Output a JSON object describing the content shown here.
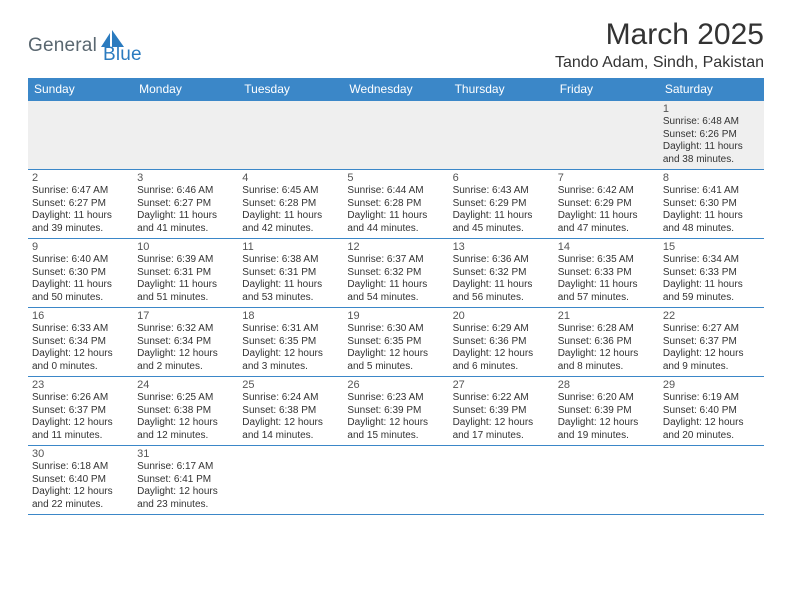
{
  "logo": {
    "general": "General",
    "blue": "Blue"
  },
  "title": "March 2025",
  "location": "Tando Adam, Sindh, Pakistan",
  "day_headers": [
    "Sunday",
    "Monday",
    "Tuesday",
    "Wednesday",
    "Thursday",
    "Friday",
    "Saturday"
  ],
  "colors": {
    "header_bg": "#3b87c8",
    "header_text": "#ffffff",
    "row_border": "#3b87c8",
    "first_row_bg": "#efefef",
    "logo_general": "#5a6770",
    "logo_blue": "#2b7bbf",
    "title_color": "#333333",
    "day_num_color": "#555555",
    "day_text_color": "#333333"
  },
  "fonts": {
    "title_size": 30,
    "location_size": 16,
    "header_size": 12,
    "daynum_size": 11,
    "daytext_size": 10
  },
  "weeks": [
    [
      {},
      {},
      {},
      {},
      {},
      {},
      {
        "n": "1",
        "sr": "Sunrise: 6:48 AM",
        "ss": "Sunset: 6:26 PM",
        "d1": "Daylight: 11 hours",
        "d2": "and 38 minutes."
      }
    ],
    [
      {
        "n": "2",
        "sr": "Sunrise: 6:47 AM",
        "ss": "Sunset: 6:27 PM",
        "d1": "Daylight: 11 hours",
        "d2": "and 39 minutes."
      },
      {
        "n": "3",
        "sr": "Sunrise: 6:46 AM",
        "ss": "Sunset: 6:27 PM",
        "d1": "Daylight: 11 hours",
        "d2": "and 41 minutes."
      },
      {
        "n": "4",
        "sr": "Sunrise: 6:45 AM",
        "ss": "Sunset: 6:28 PM",
        "d1": "Daylight: 11 hours",
        "d2": "and 42 minutes."
      },
      {
        "n": "5",
        "sr": "Sunrise: 6:44 AM",
        "ss": "Sunset: 6:28 PM",
        "d1": "Daylight: 11 hours",
        "d2": "and 44 minutes."
      },
      {
        "n": "6",
        "sr": "Sunrise: 6:43 AM",
        "ss": "Sunset: 6:29 PM",
        "d1": "Daylight: 11 hours",
        "d2": "and 45 minutes."
      },
      {
        "n": "7",
        "sr": "Sunrise: 6:42 AM",
        "ss": "Sunset: 6:29 PM",
        "d1": "Daylight: 11 hours",
        "d2": "and 47 minutes."
      },
      {
        "n": "8",
        "sr": "Sunrise: 6:41 AM",
        "ss": "Sunset: 6:30 PM",
        "d1": "Daylight: 11 hours",
        "d2": "and 48 minutes."
      }
    ],
    [
      {
        "n": "9",
        "sr": "Sunrise: 6:40 AM",
        "ss": "Sunset: 6:30 PM",
        "d1": "Daylight: 11 hours",
        "d2": "and 50 minutes."
      },
      {
        "n": "10",
        "sr": "Sunrise: 6:39 AM",
        "ss": "Sunset: 6:31 PM",
        "d1": "Daylight: 11 hours",
        "d2": "and 51 minutes."
      },
      {
        "n": "11",
        "sr": "Sunrise: 6:38 AM",
        "ss": "Sunset: 6:31 PM",
        "d1": "Daylight: 11 hours",
        "d2": "and 53 minutes."
      },
      {
        "n": "12",
        "sr": "Sunrise: 6:37 AM",
        "ss": "Sunset: 6:32 PM",
        "d1": "Daylight: 11 hours",
        "d2": "and 54 minutes."
      },
      {
        "n": "13",
        "sr": "Sunrise: 6:36 AM",
        "ss": "Sunset: 6:32 PM",
        "d1": "Daylight: 11 hours",
        "d2": "and 56 minutes."
      },
      {
        "n": "14",
        "sr": "Sunrise: 6:35 AM",
        "ss": "Sunset: 6:33 PM",
        "d1": "Daylight: 11 hours",
        "d2": "and 57 minutes."
      },
      {
        "n": "15",
        "sr": "Sunrise: 6:34 AM",
        "ss": "Sunset: 6:33 PM",
        "d1": "Daylight: 11 hours",
        "d2": "and 59 minutes."
      }
    ],
    [
      {
        "n": "16",
        "sr": "Sunrise: 6:33 AM",
        "ss": "Sunset: 6:34 PM",
        "d1": "Daylight: 12 hours",
        "d2": "and 0 minutes."
      },
      {
        "n": "17",
        "sr": "Sunrise: 6:32 AM",
        "ss": "Sunset: 6:34 PM",
        "d1": "Daylight: 12 hours",
        "d2": "and 2 minutes."
      },
      {
        "n": "18",
        "sr": "Sunrise: 6:31 AM",
        "ss": "Sunset: 6:35 PM",
        "d1": "Daylight: 12 hours",
        "d2": "and 3 minutes."
      },
      {
        "n": "19",
        "sr": "Sunrise: 6:30 AM",
        "ss": "Sunset: 6:35 PM",
        "d1": "Daylight: 12 hours",
        "d2": "and 5 minutes."
      },
      {
        "n": "20",
        "sr": "Sunrise: 6:29 AM",
        "ss": "Sunset: 6:36 PM",
        "d1": "Daylight: 12 hours",
        "d2": "and 6 minutes."
      },
      {
        "n": "21",
        "sr": "Sunrise: 6:28 AM",
        "ss": "Sunset: 6:36 PM",
        "d1": "Daylight: 12 hours",
        "d2": "and 8 minutes."
      },
      {
        "n": "22",
        "sr": "Sunrise: 6:27 AM",
        "ss": "Sunset: 6:37 PM",
        "d1": "Daylight: 12 hours",
        "d2": "and 9 minutes."
      }
    ],
    [
      {
        "n": "23",
        "sr": "Sunrise: 6:26 AM",
        "ss": "Sunset: 6:37 PM",
        "d1": "Daylight: 12 hours",
        "d2": "and 11 minutes."
      },
      {
        "n": "24",
        "sr": "Sunrise: 6:25 AM",
        "ss": "Sunset: 6:38 PM",
        "d1": "Daylight: 12 hours",
        "d2": "and 12 minutes."
      },
      {
        "n": "25",
        "sr": "Sunrise: 6:24 AM",
        "ss": "Sunset: 6:38 PM",
        "d1": "Daylight: 12 hours",
        "d2": "and 14 minutes."
      },
      {
        "n": "26",
        "sr": "Sunrise: 6:23 AM",
        "ss": "Sunset: 6:39 PM",
        "d1": "Daylight: 12 hours",
        "d2": "and 15 minutes."
      },
      {
        "n": "27",
        "sr": "Sunrise: 6:22 AM",
        "ss": "Sunset: 6:39 PM",
        "d1": "Daylight: 12 hours",
        "d2": "and 17 minutes."
      },
      {
        "n": "28",
        "sr": "Sunrise: 6:20 AM",
        "ss": "Sunset: 6:39 PM",
        "d1": "Daylight: 12 hours",
        "d2": "and 19 minutes."
      },
      {
        "n": "29",
        "sr": "Sunrise: 6:19 AM",
        "ss": "Sunset: 6:40 PM",
        "d1": "Daylight: 12 hours",
        "d2": "and 20 minutes."
      }
    ],
    [
      {
        "n": "30",
        "sr": "Sunrise: 6:18 AM",
        "ss": "Sunset: 6:40 PM",
        "d1": "Daylight: 12 hours",
        "d2": "and 22 minutes."
      },
      {
        "n": "31",
        "sr": "Sunrise: 6:17 AM",
        "ss": "Sunset: 6:41 PM",
        "d1": "Daylight: 12 hours",
        "d2": "and 23 minutes."
      },
      {},
      {},
      {},
      {},
      {}
    ]
  ]
}
